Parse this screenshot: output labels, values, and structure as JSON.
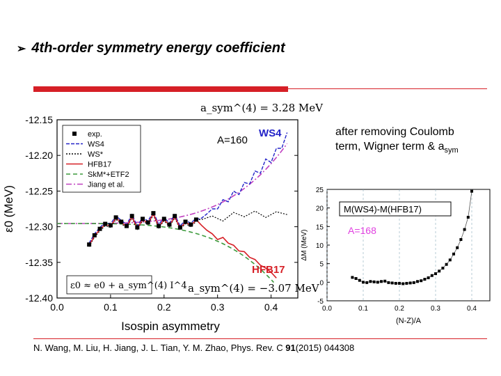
{
  "title": "4th-order symmetry energy coefficient",
  "title_icon": "arrow-bullet-icon",
  "note": {
    "line1": "after removing Coulomb",
    "line2_prefix": "term,  Wigner term & a",
    "line2_sub": "sym"
  },
  "reference": {
    "before": "N. Wang, M. Liu, H. Jiang, J. L. Tian, Y. M. Zhao, Phys. Rev. C ",
    "volume": "91",
    "after": "(2015) 044308"
  },
  "colors": {
    "accent": "#d61f26",
    "ws4": "#2323c8",
    "hfb17": "#d61f26",
    "skm": "#3c9a3c",
    "jiang": "#c040c0"
  },
  "chart_data": [
    {
      "type": "line",
      "xlabel": "Isospin asymmetry",
      "ylabel": "ε0 (MeV)",
      "xlim": [
        0.0,
        0.45
      ],
      "ylim": [
        -12.4,
        -12.15
      ],
      "xticks": [
        "0.0",
        "0.1",
        "0.2",
        "0.3",
        "0.4"
      ],
      "yticks": [
        "-12.15",
        "-12.20",
        "-12.25",
        "-12.30",
        "-12.35",
        "-12.40"
      ],
      "annotations": {
        "asym_top": "a_sym^(4) = 3.28 MeV",
        "mass": "A=160",
        "ws4_label": "WS4",
        "hfb17_label": "HFB17",
        "formula": "ε0 ≈ e0 + a_sym^(4) I^4",
        "asym_bottom": "a_sym^(4) = −3.07 MeV"
      },
      "legend": [
        "exp.",
        "WS4",
        "WS*",
        "HFB17",
        "SkM*+ETF2",
        "Jiang et al."
      ],
      "legend_position": "top-left",
      "x": [
        0.06,
        0.07,
        0.08,
        0.09,
        0.1,
        0.11,
        0.12,
        0.13,
        0.14,
        0.15,
        0.16,
        0.17,
        0.18,
        0.19,
        0.2,
        0.21,
        0.22,
        0.23,
        0.24,
        0.25,
        0.26
      ],
      "series": [
        {
          "name": "exp.",
          "values": [
            -12.325,
            -12.312,
            -12.303,
            -12.296,
            -12.298,
            -12.287,
            -12.293,
            -12.299,
            -12.285,
            -12.301,
            -12.289,
            -12.294,
            -12.281,
            -12.299,
            -12.289,
            -12.297,
            -12.285,
            -12.301,
            -12.293,
            -12.297,
            -12.29
          ]
        }
      ],
      "ws4_tail": {
        "x": [
          0.27,
          0.28,
          0.29,
          0.3,
          0.31,
          0.32,
          0.33,
          0.34,
          0.35,
          0.36,
          0.37,
          0.38,
          0.39,
          0.4,
          0.41,
          0.42,
          0.43
        ],
        "values": [
          -12.288,
          -12.282,
          -12.275,
          -12.275,
          -12.262,
          -12.265,
          -12.25,
          -12.255,
          -12.238,
          -12.24,
          -12.222,
          -12.225,
          -12.205,
          -12.21,
          -12.19,
          -12.19,
          -12.168
        ]
      },
      "ws_star_tail": {
        "x": [
          0.27,
          0.29,
          0.31,
          0.33,
          0.35,
          0.37,
          0.39,
          0.41,
          0.43
        ],
        "values": [
          -12.29,
          -12.285,
          -12.292,
          -12.28,
          -12.286,
          -12.278,
          -12.287,
          -12.279,
          -12.283
        ]
      },
      "hfb17_tail": {
        "x": [
          0.27,
          0.28,
          0.29,
          0.3,
          0.31,
          0.32,
          0.33,
          0.34,
          0.35,
          0.36,
          0.37,
          0.38,
          0.39,
          0.4,
          0.41
        ],
        "values": [
          -12.298,
          -12.305,
          -12.31,
          -12.318,
          -12.315,
          -12.323,
          -12.326,
          -12.334,
          -12.335,
          -12.343,
          -12.346,
          -12.354,
          -12.358,
          -12.364,
          -12.372
        ]
      },
      "fit_up": {
        "e0": -12.2955,
        "a4": 3.28
      },
      "fit_down": {
        "e0": -12.2955,
        "a4": -3.07
      },
      "fit_x_range": [
        0.0,
        0.43
      ]
    },
    {
      "type": "line",
      "xlabel": "(N-Z)/A",
      "ylabel": "ΔM (MeV)",
      "title": "M(WS4)-M(HFB17)",
      "annotation": "A=168",
      "xlim": [
        0.0,
        0.45
      ],
      "ylim": [
        -5,
        25
      ],
      "xticks": [
        "0.0",
        "0.1",
        "0.2",
        "0.3",
        "0.4"
      ],
      "yticks": [
        "25",
        "20",
        "15",
        "10",
        "5",
        "0",
        "-5"
      ],
      "x": [
        0.07,
        0.08,
        0.09,
        0.1,
        0.11,
        0.12,
        0.13,
        0.14,
        0.15,
        0.16,
        0.17,
        0.18,
        0.19,
        0.2,
        0.21,
        0.22,
        0.23,
        0.24,
        0.25,
        0.26,
        0.27,
        0.28,
        0.29,
        0.3,
        0.31,
        0.32,
        0.33,
        0.34,
        0.35,
        0.36,
        0.37,
        0.38,
        0.39,
        0.4
      ],
      "values": [
        1.3,
        1.0,
        0.5,
        0.0,
        -0.1,
        0.2,
        0.1,
        0.0,
        0.2,
        0.3,
        -0.1,
        -0.2,
        -0.3,
        -0.3,
        -0.4,
        -0.3,
        -0.2,
        -0.1,
        0.2,
        0.4,
        0.8,
        1.2,
        1.8,
        2.3,
        3.0,
        3.8,
        4.8,
        6.0,
        7.6,
        9.3,
        11.5,
        14.2,
        17.5,
        24.5
      ]
    }
  ]
}
